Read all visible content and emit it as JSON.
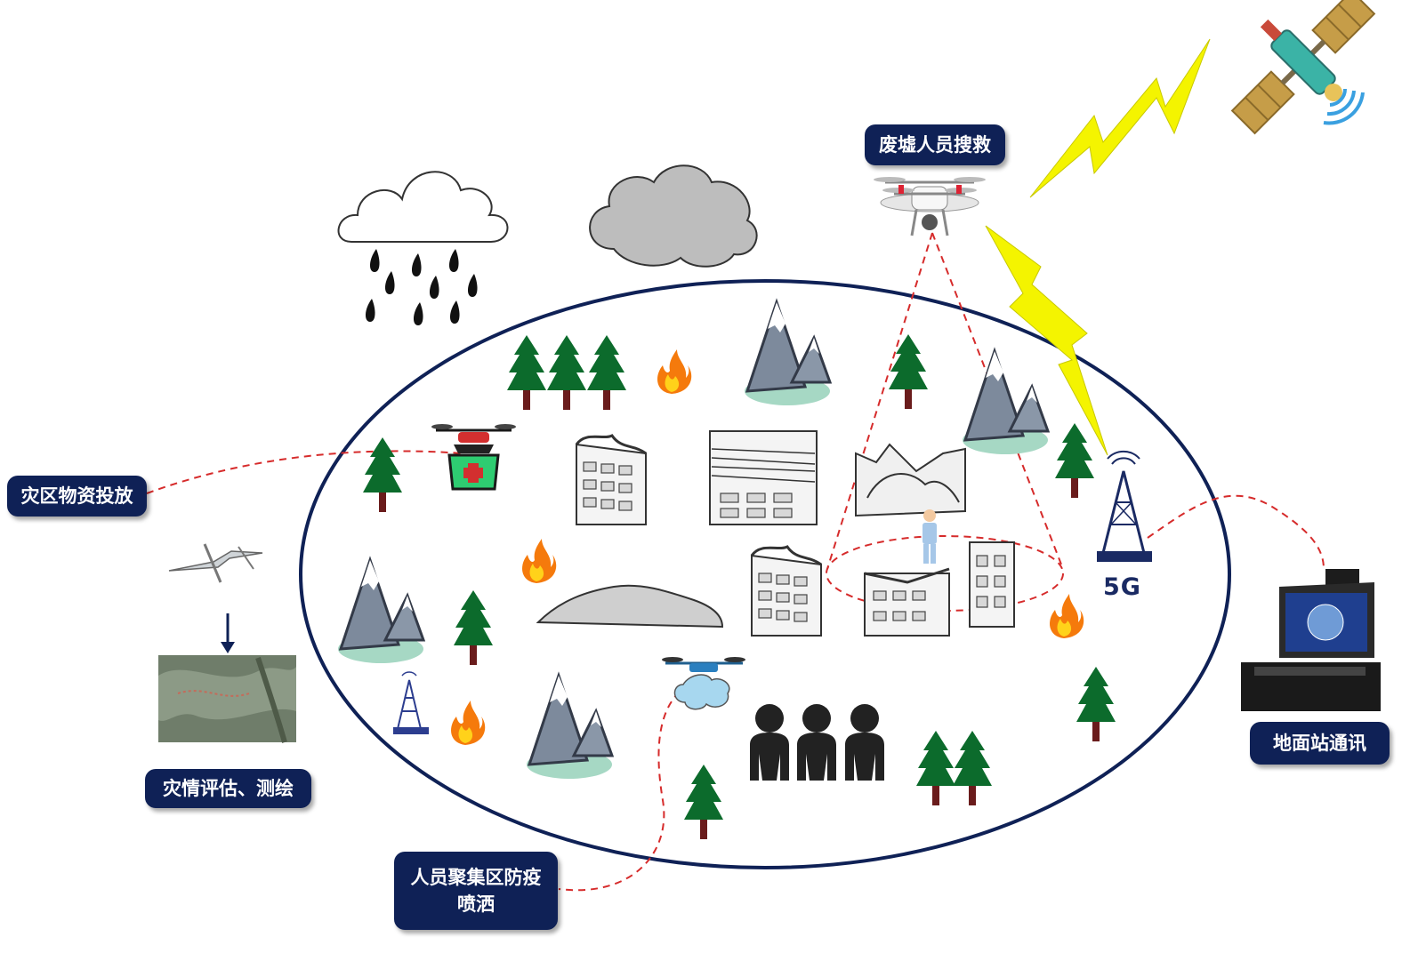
{
  "labels": {
    "relief_supply": "灾区物资投放",
    "disaster_assessment": "灾情评估、测绘",
    "crowd_spray_line1": "人员聚集区防疫",
    "crowd_spray_line2": "喷洒",
    "ruins_search": "废墟人员搜救",
    "ground_station": "地面站通讯"
  },
  "network_label": "5G",
  "colors": {
    "label_bg": "#0f2156",
    "ellipse_stroke": "#0f2156",
    "dashed_line": "#d62b2b",
    "lightning": "#f4f400",
    "tree": "#0c6b2c",
    "mountain": "#7d8a9c",
    "fire": "#f57a0c"
  },
  "icons": [
    "rain-cloud-icon",
    "gray-cloud-icon",
    "satellite-icon",
    "quadcopter-icon",
    "cargo-drone-icon",
    "fixed-wing-drone-icon",
    "spray-drone-icon",
    "cell-tower-icon",
    "ground-station-laptop-icon",
    "crowd-icon",
    "person-icon",
    "tree-icon",
    "mountain-icon",
    "fire-icon",
    "collapsed-building-icon",
    "rubble-icon",
    "aerial-map-icon",
    "lightning-icon"
  ]
}
